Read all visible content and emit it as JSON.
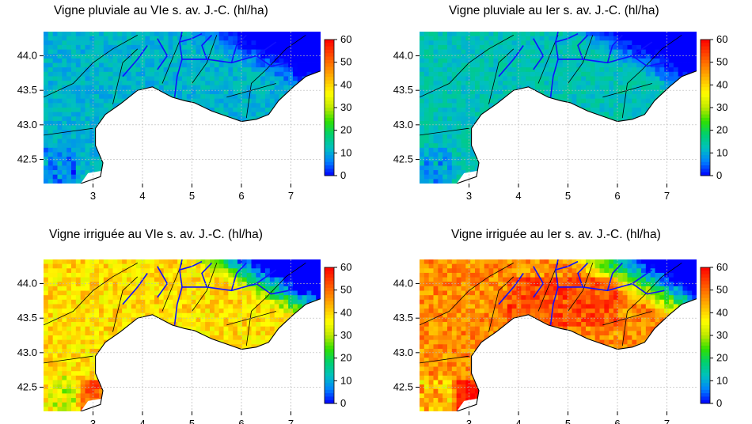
{
  "panels": [
    {
      "title": "Vigne pluviale au VIe s. av. J.-C. (hl/ha)",
      "scenario": "rainfed",
      "period": "VIe",
      "level": 11,
      "irrigated": false
    },
    {
      "title": "Vigne pluviale au Ier s. av. J.-C. (hl/ha)",
      "scenario": "rainfed",
      "period": "Ier",
      "level": 13,
      "irrigated": false
    },
    {
      "title": "Vigne irriguée au VIe s. av. J.-C. (hl/ha)",
      "scenario": "irrigated",
      "period": "VIe",
      "level": 39,
      "irrigated": true
    },
    {
      "title": "Vigne irriguée au Ier s. av. J.-C. (hl/ha)",
      "scenario": "irrigated",
      "period": "Ier",
      "level": 47,
      "irrigated": true
    }
  ],
  "axes": {
    "x_ticks": [
      "3",
      "4",
      "5",
      "6",
      "7"
    ],
    "y_ticks": [
      "44.0",
      "43.5",
      "43.0",
      "42.5"
    ],
    "x_values": [
      3,
      4,
      5,
      6,
      7
    ],
    "y_values": [
      44.0,
      43.5,
      43.0,
      42.5
    ],
    "x_range": [
      2.0,
      7.6
    ],
    "y_range": [
      42.15,
      44.35
    ]
  },
  "colorbar": {
    "ticks": [
      "60",
      "50",
      "40",
      "30",
      "20",
      "10",
      "0"
    ],
    "values": [
      60,
      50,
      40,
      30,
      20,
      10,
      0
    ],
    "range": [
      0,
      60
    ],
    "colors": [
      "#0000ff",
      "#0080ff",
      "#00c0c0",
      "#00d070",
      "#30e000",
      "#c0e800",
      "#ffff00",
      "#ffc000",
      "#ff8000",
      "#ff4000",
      "#ff0000"
    ]
  },
  "river_color": "#1010ff"
}
